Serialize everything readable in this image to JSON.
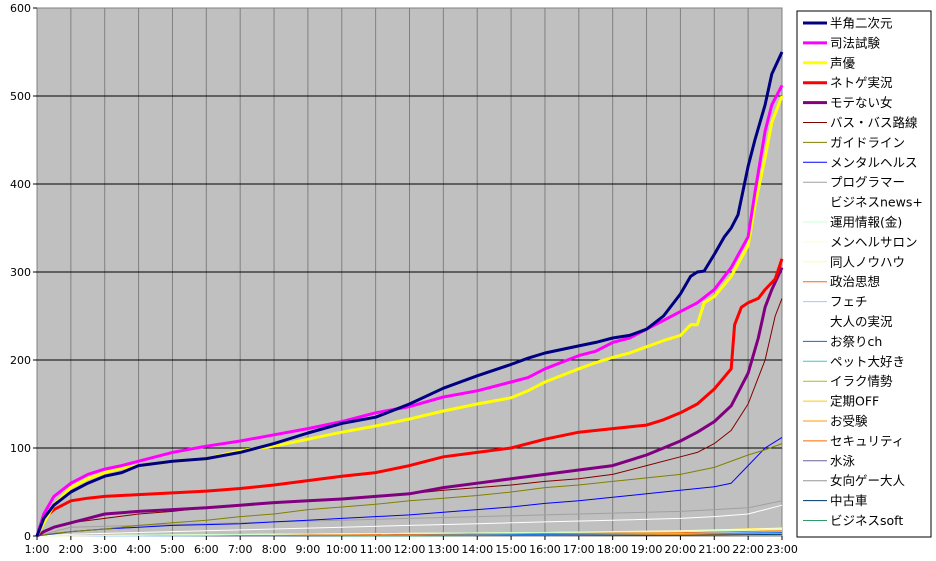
{
  "chart_data": {
    "type": "line",
    "title": "",
    "xlabel": "",
    "ylabel": "",
    "ylim": [
      0,
      600
    ],
    "yticks": [
      0,
      100,
      200,
      300,
      400,
      500,
      600
    ],
    "xtick_labels": [
      "1:00",
      "2:00",
      "3:00",
      "4:00",
      "5:00",
      "6:00",
      "7:00",
      "8:00",
      "9:00",
      "10:00",
      "11:00",
      "12:00",
      "13:00",
      "14:00",
      "15:00",
      "16:00",
      "17:00",
      "18:00",
      "19:00",
      "20:00",
      "21:00",
      "22:00",
      "23:00"
    ],
    "x_hours": [
      1,
      2,
      3,
      4,
      5,
      6,
      7,
      8,
      9,
      10,
      11,
      12,
      13,
      14,
      15,
      16,
      17,
      18,
      19,
      20,
      21,
      22,
      23
    ],
    "xlim": [
      1,
      23
    ],
    "grid": true,
    "legend_position": "right",
    "plot_background": "#c0c0c0",
    "series": [
      {
        "name": "半角二次元",
        "color": "#000080",
        "width": 3,
        "x": [
          1,
          1.2,
          1.5,
          2,
          2.5,
          3,
          3.5,
          4,
          5,
          6,
          7,
          8,
          9,
          10,
          11,
          12,
          13,
          14,
          15,
          15.5,
          16,
          17,
          17.5,
          18,
          18.5,
          19,
          19.5,
          20,
          20.3,
          20.5,
          20.7,
          21,
          21.3,
          21.5,
          21.7,
          22,
          22.2,
          22.5,
          22.7,
          23
        ],
        "y": [
          0,
          20,
          35,
          50,
          60,
          68,
          72,
          80,
          85,
          88,
          95,
          105,
          117,
          128,
          135,
          150,
          168,
          182,
          195,
          202,
          208,
          216,
          220,
          225,
          228,
          235,
          250,
          275,
          295,
          300,
          301,
          320,
          340,
          350,
          365,
          420,
          450,
          490,
          525,
          550
        ]
      },
      {
        "name": "司法試験",
        "color": "#ff00ff",
        "width": 3,
        "x": [
          1,
          1.2,
          1.5,
          2,
          2.5,
          3,
          3.5,
          4,
          5,
          6,
          7,
          8,
          9,
          10,
          11,
          12,
          13,
          14,
          15,
          15.5,
          16,
          17,
          17.5,
          18,
          18.5,
          19,
          19.5,
          20,
          20.5,
          21,
          21.5,
          22,
          22.2,
          22.5,
          22.7,
          23
        ],
        "y": [
          0,
          25,
          45,
          60,
          70,
          76,
          80,
          85,
          95,
          102,
          108,
          115,
          122,
          130,
          140,
          147,
          158,
          165,
          175,
          180,
          190,
          205,
          210,
          220,
          225,
          235,
          245,
          255,
          265,
          280,
          305,
          340,
          390,
          460,
          490,
          512
        ]
      },
      {
        "name": "声優",
        "color": "#ffff00",
        "width": 3,
        "x": [
          1,
          1.2,
          1.5,
          2,
          2.5,
          3,
          3.5,
          4,
          5,
          6,
          7,
          8,
          9,
          10,
          11,
          12,
          13,
          14,
          15,
          15.5,
          16,
          17,
          17.5,
          18,
          18.5,
          19,
          19.5,
          20,
          20.3,
          20.5,
          20.7,
          21,
          21.5,
          22,
          22.2,
          22.5,
          22.7,
          23
        ],
        "y": [
          0,
          15,
          35,
          55,
          65,
          72,
          77,
          80,
          85,
          88,
          97,
          102,
          110,
          118,
          125,
          133,
          142,
          150,
          157,
          165,
          175,
          190,
          197,
          203,
          208,
          215,
          222,
          228,
          240,
          240,
          265,
          272,
          295,
          330,
          375,
          430,
          470,
          500
        ]
      },
      {
        "name": "ネトゲ実況",
        "color": "#ff0000",
        "width": 3,
        "x": [
          1,
          1.2,
          1.5,
          2,
          2.5,
          3,
          4,
          5,
          6,
          7,
          8,
          9,
          10,
          11,
          12,
          13,
          14,
          15,
          16,
          17,
          18,
          19,
          19.5,
          20,
          20.5,
          21,
          21.5,
          21.6,
          21.8,
          22,
          22.3,
          22.5,
          22.8,
          23
        ],
        "y": [
          0,
          20,
          30,
          40,
          43,
          45,
          47,
          49,
          51,
          54,
          58,
          63,
          68,
          72,
          80,
          90,
          95,
          100,
          110,
          118,
          122,
          126,
          132,
          140,
          150,
          167,
          190,
          240,
          260,
          265,
          270,
          280,
          292,
          315
        ]
      },
      {
        "name": "モテない女",
        "color": "#800080",
        "width": 3,
        "x": [
          1,
          1.2,
          1.5,
          2,
          2.5,
          3,
          4,
          5,
          6,
          7,
          8,
          9,
          10,
          11,
          12,
          13,
          14,
          15,
          16,
          17,
          18,
          19,
          19.5,
          20,
          20.5,
          21,
          21.5,
          22,
          22.3,
          22.5,
          22.7,
          23
        ],
        "y": [
          0,
          5,
          10,
          15,
          20,
          25,
          28,
          30,
          32,
          35,
          38,
          40,
          42,
          45,
          48,
          55,
          60,
          65,
          70,
          75,
          80,
          92,
          100,
          108,
          118,
          130,
          148,
          185,
          225,
          260,
          280,
          305
        ]
      },
      {
        "name": "バス・バス路線",
        "color": "#800000",
        "width": 1,
        "x": [
          1,
          1.5,
          2,
          3,
          4,
          5,
          6,
          7,
          8,
          9,
          10,
          11,
          12,
          13,
          14,
          15,
          16,
          17,
          18,
          19,
          20,
          20.5,
          21,
          21.5,
          22,
          22.5,
          22.8,
          23
        ],
        "y": [
          0,
          10,
          15,
          20,
          25,
          28,
          32,
          35,
          38,
          40,
          43,
          45,
          48,
          52,
          55,
          58,
          62,
          65,
          70,
          80,
          90,
          95,
          105,
          120,
          150,
          200,
          250,
          270
        ]
      },
      {
        "name": "ガイドライン",
        "color": "#808000",
        "width": 1,
        "x": [
          1,
          1.5,
          2,
          3,
          4,
          5,
          6,
          7,
          8,
          9,
          10,
          11,
          12,
          13,
          14,
          15,
          16,
          17,
          18,
          19,
          20,
          21,
          22,
          22.5,
          23
        ],
        "y": [
          0,
          3,
          5,
          8,
          12,
          15,
          18,
          22,
          25,
          30,
          33,
          36,
          40,
          43,
          46,
          50,
          55,
          58,
          62,
          66,
          70,
          78,
          92,
          98,
          105
        ]
      },
      {
        "name": "メンタルヘルス",
        "color": "#0000ff",
        "width": 1,
        "x": [
          1,
          2,
          3,
          4,
          5,
          6,
          7,
          8,
          9,
          10,
          11,
          12,
          13,
          14,
          15,
          16,
          17,
          18,
          19,
          20,
          21,
          21.5,
          22,
          22.5,
          23
        ],
        "y": [
          0,
          5,
          8,
          10,
          12,
          13,
          14,
          16,
          18,
          20,
          22,
          24,
          27,
          30,
          33,
          37,
          40,
          44,
          48,
          52,
          56,
          60,
          80,
          100,
          112
        ]
      },
      {
        "name": "プログラマー",
        "color": "#a0a0a0",
        "width": 1,
        "x": [
          1,
          2,
          4,
          6,
          8,
          10,
          12,
          14,
          16,
          18,
          20,
          21,
          22,
          22.5,
          23
        ],
        "y": [
          0,
          10,
          12,
          14,
          16,
          18,
          20,
          22,
          24,
          26,
          28,
          30,
          32,
          36,
          40
        ]
      },
      {
        "name": "ビジネスnews+",
        "color": "#ffffff",
        "width": 1,
        "x": [
          1,
          2,
          4,
          6,
          8,
          10,
          12,
          14,
          16,
          18,
          20,
          21,
          22,
          22.5,
          23
        ],
        "y": [
          0,
          2,
          4,
          6,
          8,
          10,
          12,
          14,
          16,
          18,
          20,
          22,
          25,
          30,
          35
        ]
      },
      {
        "name": "運用情報(金)",
        "color": "#ccffcc",
        "width": 1,
        "x": [
          1,
          4,
          8,
          12,
          16,
          20,
          23
        ],
        "y": [
          0,
          1,
          2,
          3,
          4,
          5,
          8
        ]
      },
      {
        "name": "メンヘルサロン",
        "color": "#ffffcc",
        "width": 1,
        "x": [
          1,
          4,
          8,
          12,
          16,
          20,
          23
        ],
        "y": [
          0,
          1,
          2,
          3,
          4,
          6,
          9
        ]
      },
      {
        "name": "同人ノウハウ",
        "color": "#ffff99",
        "width": 1,
        "x": [
          1,
          4,
          8,
          12,
          16,
          20,
          23
        ],
        "y": [
          0,
          1,
          2,
          3,
          4,
          5,
          7
        ]
      },
      {
        "name": "政治思想",
        "color": "#ff6600",
        "width": 1,
        "x": [
          1,
          4,
          8,
          12,
          16,
          20,
          23
        ],
        "y": [
          0,
          1,
          1,
          2,
          3,
          4,
          6
        ]
      },
      {
        "name": "フェチ",
        "color": "#99ccff",
        "width": 1,
        "x": [
          1,
          4,
          8,
          12,
          16,
          20,
          23
        ],
        "y": [
          0,
          0,
          1,
          2,
          3,
          3,
          5
        ]
      },
      {
        "name": "大人の実況",
        "color": "#ffffff",
        "width": 1,
        "x": [
          1,
          4,
          8,
          12,
          16,
          20,
          23
        ],
        "y": [
          0,
          1,
          2,
          3,
          4,
          5,
          8
        ]
      },
      {
        "name": "お祭りch",
        "color": "#0066ff",
        "width": 1,
        "x": [
          1,
          4,
          8,
          12,
          16,
          20,
          23
        ],
        "y": [
          0,
          0,
          1,
          2,
          2,
          3,
          4
        ]
      },
      {
        "name": "ペット大好き",
        "color": "#33cccc",
        "width": 1,
        "x": [
          1,
          4,
          8,
          12,
          16,
          20,
          23
        ],
        "y": [
          0,
          0,
          1,
          1,
          2,
          3,
          4
        ]
      },
      {
        "name": "イラク情勢",
        "color": "#99cc00",
        "width": 1,
        "x": [
          1,
          4,
          8,
          12,
          16,
          20,
          23
        ],
        "y": [
          0,
          1,
          1,
          2,
          3,
          4,
          5
        ]
      },
      {
        "name": "定期OFF",
        "color": "#ffcc00",
        "width": 1,
        "x": [
          1,
          4,
          8,
          12,
          16,
          20,
          23
        ],
        "y": [
          0,
          1,
          2,
          3,
          4,
          5,
          10
        ]
      },
      {
        "name": "お受験",
        "color": "#ff9900",
        "width": 1,
        "x": [
          1,
          4,
          8,
          12,
          16,
          20,
          23
        ],
        "y": [
          0,
          0,
          1,
          1,
          2,
          2,
          3
        ]
      },
      {
        "name": "セキュリティ",
        "color": "#ff6600",
        "width": 1,
        "x": [
          1,
          4,
          8,
          12,
          16,
          20,
          23
        ],
        "y": [
          0,
          0,
          1,
          1,
          2,
          3,
          4
        ]
      },
      {
        "name": "水泳",
        "color": "#666699",
        "width": 1,
        "x": [
          1,
          4,
          8,
          12,
          16,
          20,
          23
        ],
        "y": [
          0,
          0,
          0,
          1,
          1,
          2,
          3
        ]
      },
      {
        "name": "女向ゲー大人",
        "color": "#969696",
        "width": 1,
        "x": [
          1,
          4,
          8,
          12,
          16,
          20,
          23
        ],
        "y": [
          0,
          0,
          1,
          1,
          2,
          2,
          3
        ]
      },
      {
        "name": "中古車",
        "color": "#003366",
        "width": 1,
        "x": [
          1,
          4,
          8,
          12,
          16,
          20,
          23
        ],
        "y": [
          0,
          0,
          0,
          1,
          1,
          1,
          2
        ]
      },
      {
        "name": "ビジネスsoft",
        "color": "#339966",
        "width": 1,
        "x": [
          1,
          4,
          8,
          12,
          16,
          20,
          23
        ],
        "y": [
          0,
          0,
          0,
          0,
          1,
          1,
          2
        ]
      }
    ]
  }
}
